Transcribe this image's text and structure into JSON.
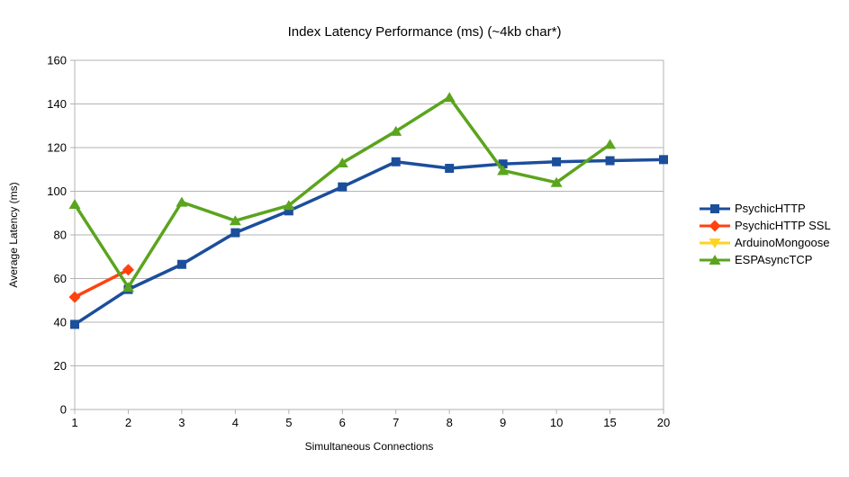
{
  "chart_data": {
    "type": "line",
    "title": "Index Latency Performance (ms) (~4kb char*)",
    "xlabel": "Simultaneous Connections",
    "ylabel": "Average Latency (ms)",
    "categories": [
      "1",
      "2",
      "3",
      "4",
      "5",
      "6",
      "7",
      "8",
      "9",
      "10",
      "15",
      "20"
    ],
    "ylim": [
      0,
      160
    ],
    "yticks": [
      0,
      20,
      40,
      60,
      80,
      100,
      120,
      140,
      160
    ],
    "grid": "horizontal",
    "legend_position": "right",
    "series": [
      {
        "name": "PsychicHTTP",
        "color": "#1B4E9B",
        "marker": "square",
        "values": [
          39,
          55,
          66.5,
          81,
          91,
          102,
          113.5,
          110.5,
          112.5,
          113.5,
          114,
          114.5
        ]
      },
      {
        "name": "PsychicHTTP SSL",
        "color": "#FF420E",
        "marker": "diamond",
        "values": [
          51.5,
          64,
          null,
          null,
          null,
          null,
          null,
          null,
          null,
          null,
          null,
          null
        ]
      },
      {
        "name": "ArduinoMongoose",
        "color": "#FFD320",
        "marker": "triangle-down",
        "values": [
          null,
          null,
          null,
          null,
          null,
          null,
          null,
          null,
          null,
          null,
          null,
          null
        ]
      },
      {
        "name": "ESPAsyncTCP",
        "color": "#5BA41E",
        "marker": "triangle-up",
        "values": [
          94,
          56,
          95,
          86.5,
          93.5,
          113,
          127.5,
          143,
          109.5,
          104,
          121.5,
          null
        ]
      }
    ],
    "colors": {
      "gridline": "#B3B3B3",
      "axis": "#B3B3B3",
      "text": "#000000",
      "background": "#FFFFFF"
    }
  }
}
